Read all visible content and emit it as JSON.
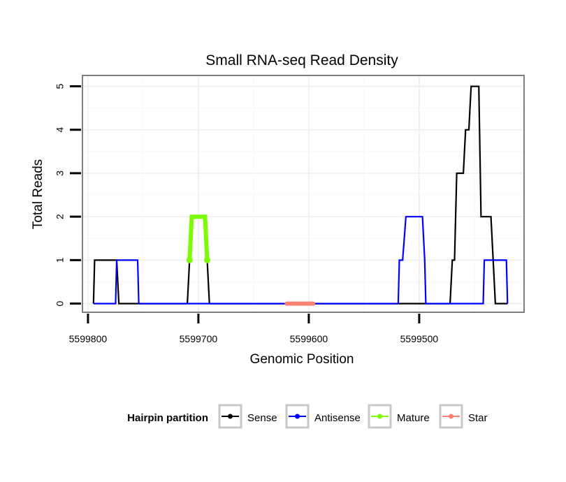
{
  "chart_data": {
    "type": "line",
    "title": "Small RNA-seq Read Density",
    "xlabel": "Genomic Position",
    "ylabel": "Total Reads",
    "x_reversed": true,
    "xlim": [
      5599805,
      5599405
    ],
    "ylim": [
      -0.2,
      5.25
    ],
    "x_ticks": [
      5599800,
      5599700,
      5599600,
      5599500
    ],
    "x_tick_labels": [
      "5599800",
      "5599700",
      "5599600",
      "5599500"
    ],
    "y_ticks": [
      0,
      1,
      2,
      3,
      4,
      5
    ],
    "y_tick_labels": [
      "0",
      "1",
      "2",
      "3",
      "4",
      "5"
    ],
    "grid": true,
    "legend": {
      "title": "Hairpin partition",
      "position": "bottom",
      "entries": [
        "Sense",
        "Antisense",
        "Mature",
        "Star"
      ]
    },
    "series": [
      {
        "name": "Sense",
        "color": "#000000",
        "type": "line",
        "points": [
          [
            5599795,
            0
          ],
          [
            5599794,
            1
          ],
          [
            5599785,
            1
          ],
          [
            5599778,
            1
          ],
          [
            5599774,
            1
          ],
          [
            5599772,
            0
          ],
          [
            5599760,
            0
          ],
          [
            5599740,
            0
          ],
          [
            5599720,
            0
          ],
          [
            5599710,
            0
          ],
          [
            5599708,
            1
          ],
          [
            5599706,
            2
          ],
          [
            5599694,
            2
          ],
          [
            5599692,
            1
          ],
          [
            5599690,
            0
          ],
          [
            5599670,
            0
          ],
          [
            5599640,
            0
          ],
          [
            5599610,
            0
          ],
          [
            5599580,
            0
          ],
          [
            5599550,
            0
          ],
          [
            5599520,
            0
          ],
          [
            5599490,
            0
          ],
          [
            5599472,
            0
          ],
          [
            5599470,
            1
          ],
          [
            5599468,
            1
          ],
          [
            5599466,
            3
          ],
          [
            5599460,
            3
          ],
          [
            5599458,
            4
          ],
          [
            5599455,
            4
          ],
          [
            5599453,
            5
          ],
          [
            5599446,
            5
          ],
          [
            5599444,
            2
          ],
          [
            5599435,
            2
          ],
          [
            5599431,
            0
          ],
          [
            5599420,
            0
          ]
        ]
      },
      {
        "name": "Antisense",
        "color": "#0000ff",
        "type": "line",
        "points": [
          [
            5599795,
            0
          ],
          [
            5599775,
            0
          ],
          [
            5599774,
            1
          ],
          [
            5599770,
            1
          ],
          [
            5599755,
            1
          ],
          [
            5599754,
            0
          ],
          [
            5599730,
            0
          ],
          [
            5599700,
            0
          ],
          [
            5599650,
            0
          ],
          [
            5599600,
            0
          ],
          [
            5599550,
            0
          ],
          [
            5599519,
            0
          ],
          [
            5599518,
            1
          ],
          [
            5599515,
            1
          ],
          [
            5599512,
            2
          ],
          [
            5599497,
            2
          ],
          [
            5599495,
            1
          ],
          [
            5599494,
            0
          ],
          [
            5599470,
            0
          ],
          [
            5599450,
            0
          ],
          [
            5599442,
            0
          ],
          [
            5599441,
            1
          ],
          [
            5599430,
            1
          ],
          [
            5599421,
            1
          ],
          [
            5599420,
            0
          ]
        ]
      },
      {
        "name": "Mature",
        "color": "#7cfc00",
        "type": "line",
        "points": [
          [
            5599708,
            1
          ],
          [
            5599706,
            2
          ],
          [
            5599694,
            2
          ],
          [
            5599692,
            1
          ]
        ]
      },
      {
        "name": "Star",
        "color": "#fa8072",
        "type": "line",
        "points": [
          [
            5599620,
            0
          ],
          [
            5599596,
            0
          ]
        ]
      }
    ]
  }
}
